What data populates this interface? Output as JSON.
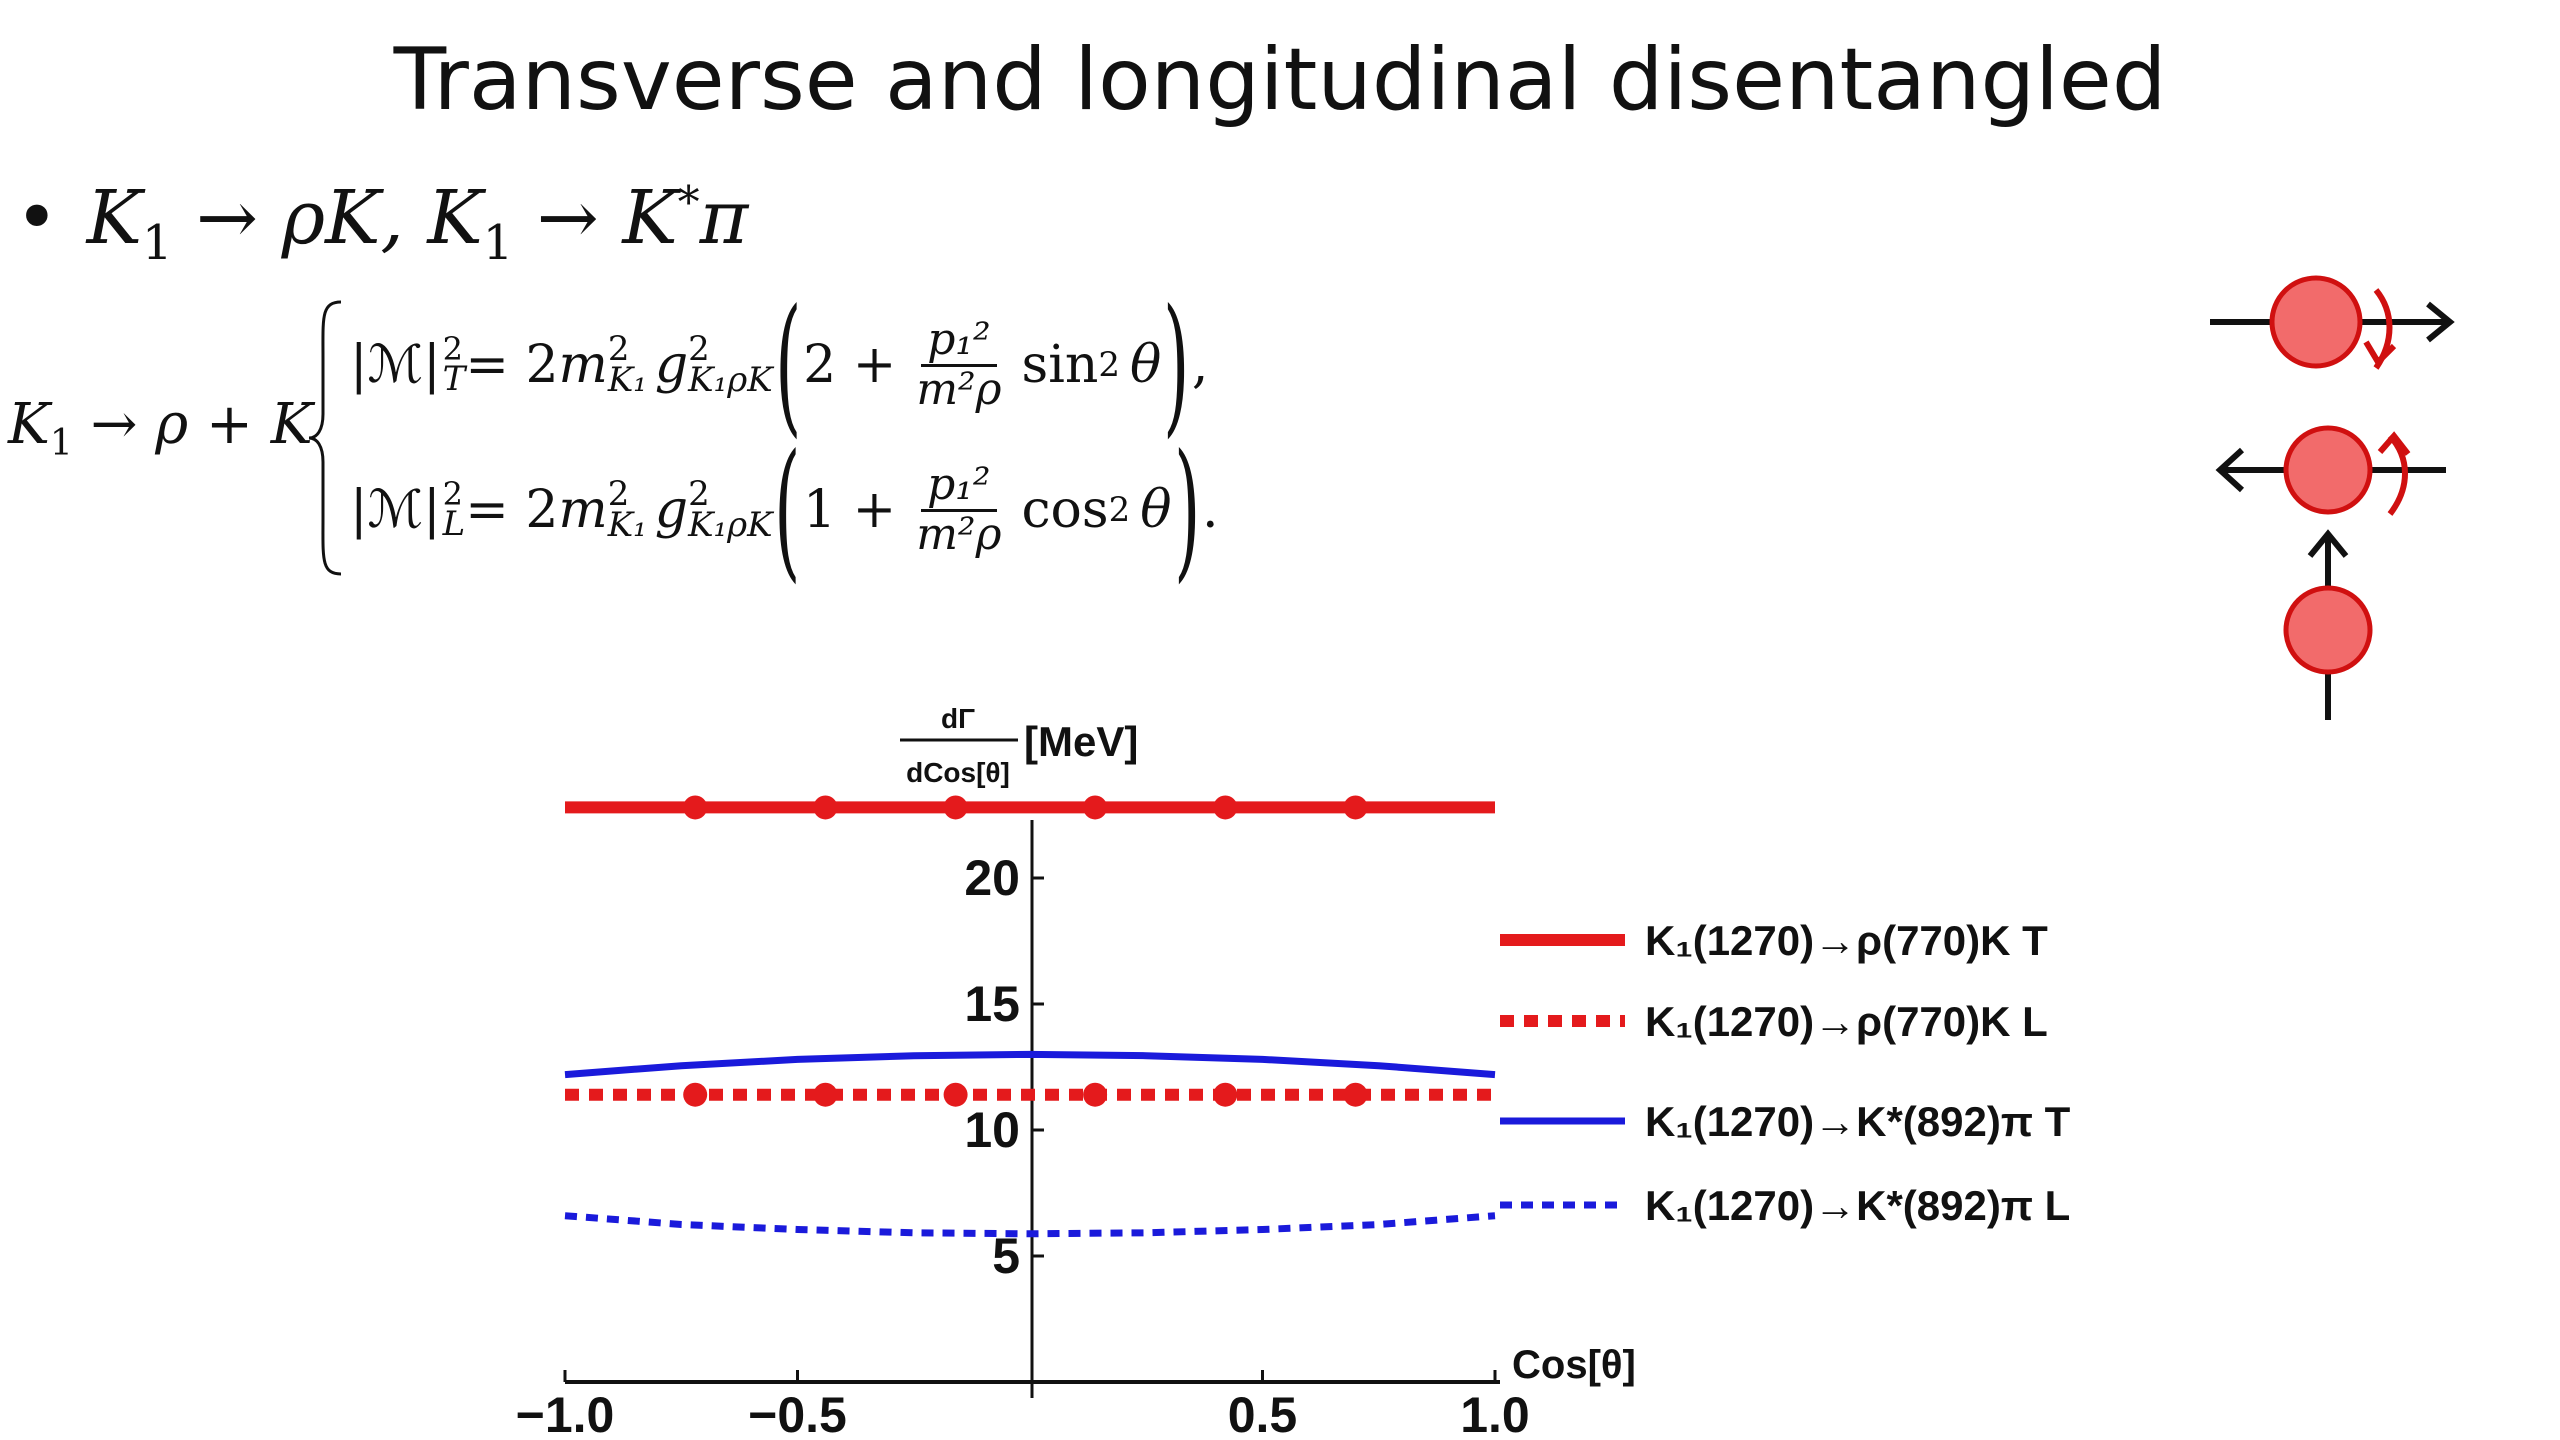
{
  "title": "Transverse and longitudinal disentangled",
  "bullet": {
    "marker": "•",
    "K1": "K",
    "one": "1",
    "arrow": "→",
    "rhoK": "ρK,",
    "Kstar": "K",
    "star": "*",
    "pi": "π"
  },
  "equation": {
    "lhs_K": "K",
    "lhs_sub": "1",
    "lhs_rest": " → ρ + K",
    "row1": {
      "ampl": "|ℳ|",
      "pol": "T",
      "mid": " = 2",
      "m": "m",
      "mK": "K₁",
      "g": "g",
      "gsub": "K₁ρK",
      "open": "(",
      "const": "2 + ",
      "num": "p₁²",
      "den": "m²ρ",
      "trig": "sin",
      "theta": "θ",
      "close": ")",
      "punct": ","
    },
    "row2": {
      "ampl": "|ℳ|",
      "pol": "L",
      "mid": " = 2",
      "m": "m",
      "mK": "K₁",
      "g": "g",
      "gsub": "K₁ρK",
      "open": "(",
      "const": "1 + ",
      "num": "p₁²",
      "den": "m²ρ",
      "trig": "cos",
      "theta": "θ",
      "close": ")",
      "punct": "."
    }
  },
  "colors": {
    "red": "#e41a1c",
    "blue": "#1a1adb",
    "axis": "#111111",
    "circle_fill": "#f26b6b",
    "circle_stroke": "#d01010"
  },
  "chart_data": {
    "type": "line",
    "ylabel_num": "dΓ",
    "ylabel_den": "dCos[θ]",
    "ylabel_unit": "[MeV]",
    "xlabel": "Cos[θ]",
    "xlim": [
      -1.0,
      1.0
    ],
    "ylim": [
      0,
      25
    ],
    "xticks": [
      -1.0,
      -0.5,
      0.5,
      1.0
    ],
    "xtick_labels": [
      "−1.0",
      "−0.5",
      "0.5",
      "1.0"
    ],
    "yticks": [
      5,
      10,
      15,
      20
    ],
    "ytick_labels": [
      "5",
      "10",
      "15",
      "20"
    ],
    "legend_position": "right",
    "series": [
      {
        "name": "K₁(1270)→ρ(770)K T",
        "color": "#e41a1c",
        "style": "solid",
        "markers": true,
        "x": [
          -1.0,
          -0.72,
          -0.44,
          -0.16,
          0.14,
          0.42,
          0.7,
          1.0
        ],
        "y": [
          22.8,
          22.8,
          22.8,
          22.8,
          22.8,
          22.8,
          22.8,
          22.8
        ]
      },
      {
        "name": "K₁(1270)→ρ(770)K L",
        "color": "#e41a1c",
        "style": "dotted",
        "markers": true,
        "x": [
          -1.0,
          -0.72,
          -0.44,
          -0.16,
          0.14,
          0.42,
          0.7,
          1.0
        ],
        "y": [
          11.4,
          11.4,
          11.4,
          11.4,
          11.4,
          11.4,
          11.4,
          11.4
        ]
      },
      {
        "name": "K₁(1270)→K*(892)π T",
        "color": "#1a1adb",
        "style": "solid",
        "markers": false,
        "x": [
          -1.0,
          -0.75,
          -0.5,
          -0.25,
          0.0,
          0.25,
          0.5,
          0.75,
          1.0
        ],
        "y": [
          12.2,
          12.55,
          12.8,
          12.95,
          13.0,
          12.95,
          12.8,
          12.55,
          12.2
        ]
      },
      {
        "name": "K₁(1270)→K*(892)π L",
        "color": "#1a1adb",
        "style": "dotted",
        "markers": false,
        "x": [
          -1.0,
          -0.75,
          -0.5,
          -0.25,
          0.0,
          0.25,
          0.5,
          0.75,
          1.0
        ],
        "y": [
          6.6,
          6.25,
          6.05,
          5.92,
          5.88,
          5.92,
          6.05,
          6.25,
          6.6
        ]
      }
    ]
  }
}
